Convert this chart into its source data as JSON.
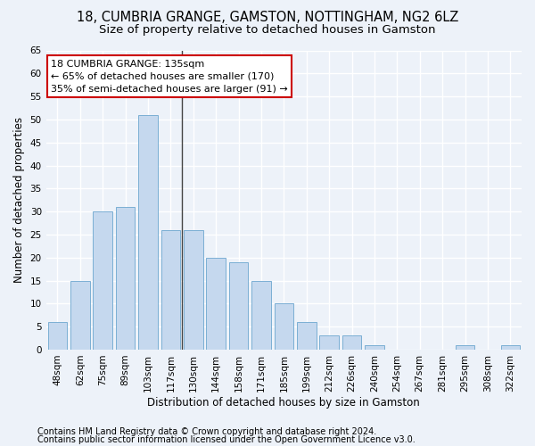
{
  "title1": "18, CUMBRIA GRANGE, GAMSTON, NOTTINGHAM, NG2 6LZ",
  "title2": "Size of property relative to detached houses in Gamston",
  "xlabel": "Distribution of detached houses by size in Gamston",
  "ylabel": "Number of detached properties",
  "categories": [
    "48sqm",
    "62sqm",
    "75sqm",
    "89sqm",
    "103sqm",
    "117sqm",
    "130sqm",
    "144sqm",
    "158sqm",
    "171sqm",
    "185sqm",
    "199sqm",
    "212sqm",
    "226sqm",
    "240sqm",
    "254sqm",
    "267sqm",
    "281sqm",
    "295sqm",
    "308sqm",
    "322sqm"
  ],
  "values": [
    6,
    15,
    30,
    31,
    51,
    26,
    26,
    20,
    19,
    15,
    10,
    6,
    3,
    3,
    1,
    0,
    0,
    0,
    1,
    0,
    1
  ],
  "bar_color": "#c5d8ee",
  "bar_edge_color": "#7bafd4",
  "annotation_line": "18 CUMBRIA GRANGE: 135sqm",
  "annotation_line2": "← 65% of detached houses are smaller (170)",
  "annotation_line3": "35% of semi-detached houses are larger (91) →",
  "annotation_box_color": "#ffffff",
  "annotation_box_edge": "#cc0000",
  "vline_x": 5.5,
  "ylim": [
    0,
    65
  ],
  "yticks": [
    0,
    5,
    10,
    15,
    20,
    25,
    30,
    35,
    40,
    45,
    50,
    55,
    60,
    65
  ],
  "footer1": "Contains HM Land Registry data © Crown copyright and database right 2024.",
  "footer2": "Contains public sector information licensed under the Open Government Licence v3.0.",
  "bg_color": "#edf2f9",
  "plot_bg_color": "#edf2f9",
  "grid_color": "#ffffff",
  "title1_fontsize": 10.5,
  "title2_fontsize": 9.5,
  "axis_label_fontsize": 8.5,
  "tick_fontsize": 7.5,
  "annot_fontsize": 8,
  "footer_fontsize": 7
}
